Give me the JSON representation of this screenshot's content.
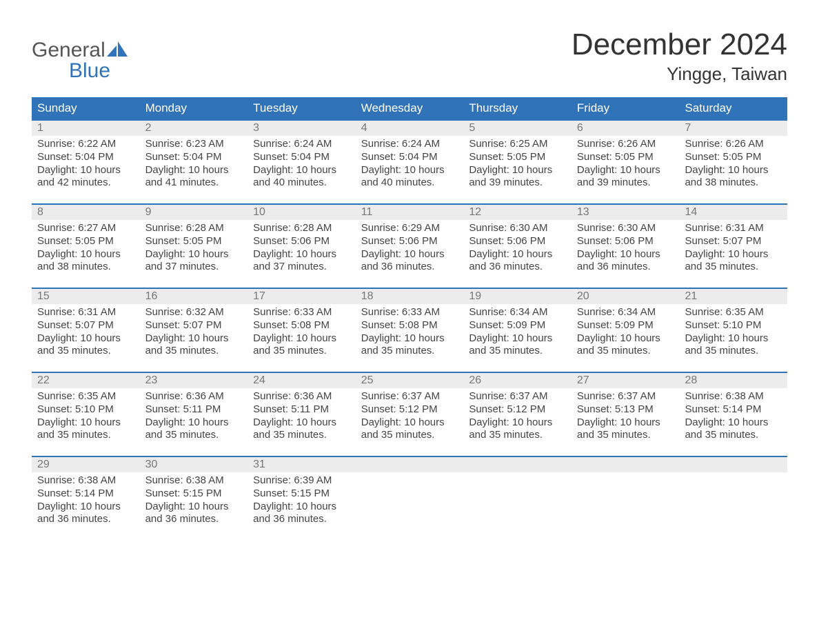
{
  "logo": {
    "word1": "General",
    "word2": "Blue",
    "word1_color": "#555555",
    "word2_color": "#3173b9"
  },
  "title": {
    "month": "December 2024",
    "location": "Yingge, Taiwan"
  },
  "colors": {
    "header_bg": "#3173b9",
    "header_text": "#ffffff",
    "daynum_bg": "#ececec",
    "daynum_text": "#777777",
    "body_text": "#444444",
    "week_border": "#3173b9",
    "page_bg": "#ffffff"
  },
  "fonts": {
    "title_pt": 44,
    "location_pt": 26,
    "weekday_pt": 17,
    "daynum_pt": 16,
    "cell_pt": 15,
    "family": "Arial"
  },
  "weekdays": [
    "Sunday",
    "Monday",
    "Tuesday",
    "Wednesday",
    "Thursday",
    "Friday",
    "Saturday"
  ],
  "weeks": [
    [
      {
        "n": "1",
        "sunrise": "Sunrise: 6:22 AM",
        "sunset": "Sunset: 5:04 PM",
        "d1": "Daylight: 10 hours",
        "d2": "and 42 minutes."
      },
      {
        "n": "2",
        "sunrise": "Sunrise: 6:23 AM",
        "sunset": "Sunset: 5:04 PM",
        "d1": "Daylight: 10 hours",
        "d2": "and 41 minutes."
      },
      {
        "n": "3",
        "sunrise": "Sunrise: 6:24 AM",
        "sunset": "Sunset: 5:04 PM",
        "d1": "Daylight: 10 hours",
        "d2": "and 40 minutes."
      },
      {
        "n": "4",
        "sunrise": "Sunrise: 6:24 AM",
        "sunset": "Sunset: 5:04 PM",
        "d1": "Daylight: 10 hours",
        "d2": "and 40 minutes."
      },
      {
        "n": "5",
        "sunrise": "Sunrise: 6:25 AM",
        "sunset": "Sunset: 5:05 PM",
        "d1": "Daylight: 10 hours",
        "d2": "and 39 minutes."
      },
      {
        "n": "6",
        "sunrise": "Sunrise: 6:26 AM",
        "sunset": "Sunset: 5:05 PM",
        "d1": "Daylight: 10 hours",
        "d2": "and 39 minutes."
      },
      {
        "n": "7",
        "sunrise": "Sunrise: 6:26 AM",
        "sunset": "Sunset: 5:05 PM",
        "d1": "Daylight: 10 hours",
        "d2": "and 38 minutes."
      }
    ],
    [
      {
        "n": "8",
        "sunrise": "Sunrise: 6:27 AM",
        "sunset": "Sunset: 5:05 PM",
        "d1": "Daylight: 10 hours",
        "d2": "and 38 minutes."
      },
      {
        "n": "9",
        "sunrise": "Sunrise: 6:28 AM",
        "sunset": "Sunset: 5:05 PM",
        "d1": "Daylight: 10 hours",
        "d2": "and 37 minutes."
      },
      {
        "n": "10",
        "sunrise": "Sunrise: 6:28 AM",
        "sunset": "Sunset: 5:06 PM",
        "d1": "Daylight: 10 hours",
        "d2": "and 37 minutes."
      },
      {
        "n": "11",
        "sunrise": "Sunrise: 6:29 AM",
        "sunset": "Sunset: 5:06 PM",
        "d1": "Daylight: 10 hours",
        "d2": "and 36 minutes."
      },
      {
        "n": "12",
        "sunrise": "Sunrise: 6:30 AM",
        "sunset": "Sunset: 5:06 PM",
        "d1": "Daylight: 10 hours",
        "d2": "and 36 minutes."
      },
      {
        "n": "13",
        "sunrise": "Sunrise: 6:30 AM",
        "sunset": "Sunset: 5:06 PM",
        "d1": "Daylight: 10 hours",
        "d2": "and 36 minutes."
      },
      {
        "n": "14",
        "sunrise": "Sunrise: 6:31 AM",
        "sunset": "Sunset: 5:07 PM",
        "d1": "Daylight: 10 hours",
        "d2": "and 35 minutes."
      }
    ],
    [
      {
        "n": "15",
        "sunrise": "Sunrise: 6:31 AM",
        "sunset": "Sunset: 5:07 PM",
        "d1": "Daylight: 10 hours",
        "d2": "and 35 minutes."
      },
      {
        "n": "16",
        "sunrise": "Sunrise: 6:32 AM",
        "sunset": "Sunset: 5:07 PM",
        "d1": "Daylight: 10 hours",
        "d2": "and 35 minutes."
      },
      {
        "n": "17",
        "sunrise": "Sunrise: 6:33 AM",
        "sunset": "Sunset: 5:08 PM",
        "d1": "Daylight: 10 hours",
        "d2": "and 35 minutes."
      },
      {
        "n": "18",
        "sunrise": "Sunrise: 6:33 AM",
        "sunset": "Sunset: 5:08 PM",
        "d1": "Daylight: 10 hours",
        "d2": "and 35 minutes."
      },
      {
        "n": "19",
        "sunrise": "Sunrise: 6:34 AM",
        "sunset": "Sunset: 5:09 PM",
        "d1": "Daylight: 10 hours",
        "d2": "and 35 minutes."
      },
      {
        "n": "20",
        "sunrise": "Sunrise: 6:34 AM",
        "sunset": "Sunset: 5:09 PM",
        "d1": "Daylight: 10 hours",
        "d2": "and 35 minutes."
      },
      {
        "n": "21",
        "sunrise": "Sunrise: 6:35 AM",
        "sunset": "Sunset: 5:10 PM",
        "d1": "Daylight: 10 hours",
        "d2": "and 35 minutes."
      }
    ],
    [
      {
        "n": "22",
        "sunrise": "Sunrise: 6:35 AM",
        "sunset": "Sunset: 5:10 PM",
        "d1": "Daylight: 10 hours",
        "d2": "and 35 minutes."
      },
      {
        "n": "23",
        "sunrise": "Sunrise: 6:36 AM",
        "sunset": "Sunset: 5:11 PM",
        "d1": "Daylight: 10 hours",
        "d2": "and 35 minutes."
      },
      {
        "n": "24",
        "sunrise": "Sunrise: 6:36 AM",
        "sunset": "Sunset: 5:11 PM",
        "d1": "Daylight: 10 hours",
        "d2": "and 35 minutes."
      },
      {
        "n": "25",
        "sunrise": "Sunrise: 6:37 AM",
        "sunset": "Sunset: 5:12 PM",
        "d1": "Daylight: 10 hours",
        "d2": "and 35 minutes."
      },
      {
        "n": "26",
        "sunrise": "Sunrise: 6:37 AM",
        "sunset": "Sunset: 5:12 PM",
        "d1": "Daylight: 10 hours",
        "d2": "and 35 minutes."
      },
      {
        "n": "27",
        "sunrise": "Sunrise: 6:37 AM",
        "sunset": "Sunset: 5:13 PM",
        "d1": "Daylight: 10 hours",
        "d2": "and 35 minutes."
      },
      {
        "n": "28",
        "sunrise": "Sunrise: 6:38 AM",
        "sunset": "Sunset: 5:14 PM",
        "d1": "Daylight: 10 hours",
        "d2": "and 35 minutes."
      }
    ],
    [
      {
        "n": "29",
        "sunrise": "Sunrise: 6:38 AM",
        "sunset": "Sunset: 5:14 PM",
        "d1": "Daylight: 10 hours",
        "d2": "and 36 minutes."
      },
      {
        "n": "30",
        "sunrise": "Sunrise: 6:38 AM",
        "sunset": "Sunset: 5:15 PM",
        "d1": "Daylight: 10 hours",
        "d2": "and 36 minutes."
      },
      {
        "n": "31",
        "sunrise": "Sunrise: 6:39 AM",
        "sunset": "Sunset: 5:15 PM",
        "d1": "Daylight: 10 hours",
        "d2": "and 36 minutes."
      },
      {
        "n": "",
        "sunrise": "",
        "sunset": "",
        "d1": "",
        "d2": ""
      },
      {
        "n": "",
        "sunrise": "",
        "sunset": "",
        "d1": "",
        "d2": ""
      },
      {
        "n": "",
        "sunrise": "",
        "sunset": "",
        "d1": "",
        "d2": ""
      },
      {
        "n": "",
        "sunrise": "",
        "sunset": "",
        "d1": "",
        "d2": ""
      }
    ]
  ]
}
